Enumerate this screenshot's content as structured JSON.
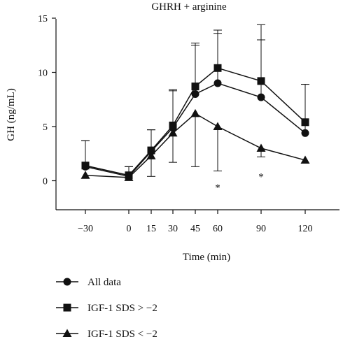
{
  "chart_data": {
    "type": "line",
    "title": "GHRH + arginine",
    "xlabel": "Time (min)",
    "ylabel": "GH (ng/mL)",
    "x": [
      -30,
      0,
      15,
      30,
      45,
      60,
      90,
      120
    ],
    "xticks": [
      "−30",
      "0",
      "15",
      "30",
      "45",
      "60",
      "90",
      "120"
    ],
    "ylim": [
      -2.5,
      15
    ],
    "yticks": [
      "0",
      "5",
      "10",
      "15"
    ],
    "ytick_values": [
      0,
      5,
      10,
      15
    ],
    "grid": false,
    "legend_position": "bottom",
    "series": [
      {
        "name": "All data",
        "marker": "circle",
        "values": [
          1.3,
          0.4,
          2.7,
          4.9,
          8.0,
          9.0,
          7.7,
          4.4
        ],
        "upper": [
          3.7,
          1.3,
          4.7,
          8.4,
          12.7,
          13.9,
          13.0,
          8.9
        ]
      },
      {
        "name": "IGF-1 SDS > −2",
        "marker": "square",
        "values": [
          1.4,
          0.5,
          2.8,
          5.1,
          8.7,
          10.4,
          9.2,
          5.4
        ],
        "upper": [
          3.7,
          1.3,
          4.7,
          8.3,
          12.5,
          13.6,
          14.4,
          8.9
        ]
      },
      {
        "name": "IGF-1 SDS < −2",
        "marker": "triangle",
        "values": [
          0.5,
          0.3,
          2.3,
          4.4,
          6.2,
          5.0,
          3.0,
          1.9
        ],
        "lower": [
          0.5,
          0.3,
          0.4,
          1.7,
          1.3,
          0.9,
          2.2,
          1.9
        ]
      }
    ],
    "annotations": [
      {
        "text": "*",
        "x": 60,
        "y": -0.6
      },
      {
        "text": "*",
        "x": 90,
        "y": 0.4
      }
    ]
  }
}
